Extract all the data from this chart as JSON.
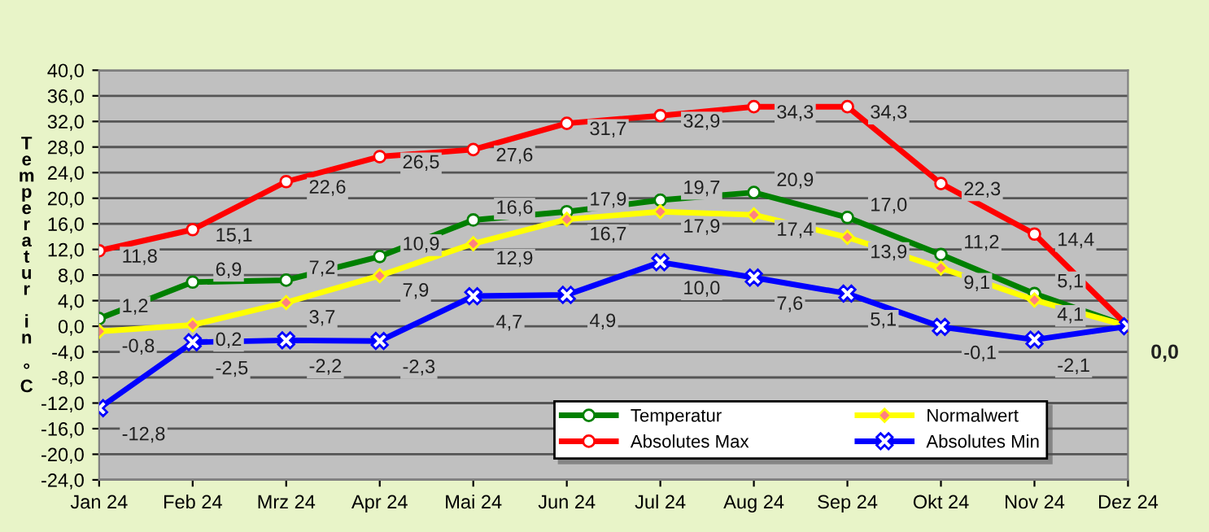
{
  "chart_data": {
    "type": "line",
    "ylabel": "Temperatur in °C",
    "categories": [
      "Jan 24",
      "Feb 24",
      "Mrz 24",
      "Apr 24",
      "Mai 24",
      "Jun 24",
      "Jul 24",
      "Aug 24",
      "Sep 24",
      "Okt 24",
      "Nov 24",
      "Dez 24"
    ],
    "series": [
      {
        "name": "Temperatur",
        "color": "#008000",
        "marker": "circle",
        "values": [
          1.2,
          6.9,
          7.2,
          10.9,
          16.6,
          17.9,
          19.7,
          20.9,
          17.0,
          11.2,
          5.1,
          0.0
        ],
        "value_labels": [
          "1,2",
          "6,9",
          "7,2",
          "10,9",
          "16,6",
          "17,9",
          "19,7",
          "20,9",
          "17,0",
          "11,2",
          "5,1",
          null
        ]
      },
      {
        "name": "Normalwert",
        "color": "#ffff00",
        "marker": "diamond",
        "values": [
          -0.8,
          0.2,
          3.7,
          7.9,
          12.9,
          16.7,
          17.9,
          17.4,
          13.9,
          9.1,
          4.1,
          0.0
        ],
        "value_labels": [
          "-0,8",
          "0,2",
          "3,7",
          "7,9",
          "12,9",
          "16,7",
          "17,9",
          "17,4",
          "13,9",
          "9,1",
          "4,1",
          null
        ]
      },
      {
        "name": "Absolutes Max",
        "color": "#ff0000",
        "marker": "circle",
        "values": [
          11.8,
          15.1,
          22.6,
          26.5,
          27.6,
          31.7,
          32.9,
          34.3,
          34.3,
          22.3,
          14.4,
          0.0
        ],
        "value_labels": [
          "11,8",
          "15,1",
          "22,6",
          "26,5",
          "27,6",
          "31,7",
          "32,9",
          "34,3",
          "34,3",
          "22,3",
          "14,4",
          null
        ]
      },
      {
        "name": "Absolutes Min",
        "color": "#0000ff",
        "marker": "cross",
        "values": [
          -12.8,
          -2.5,
          -2.2,
          -2.3,
          4.7,
          4.9,
          10.0,
          7.6,
          5.1,
          -0.1,
          -2.1,
          0.0
        ],
        "value_labels": [
          "-12,8",
          "-2,5",
          "-2,2",
          "-2,3",
          "4,7",
          "4,9",
          "10,0",
          "7,6",
          "5,1",
          "-0,1",
          "-2,1",
          "0,0"
        ]
      }
    ],
    "ylim": [
      -24,
      40
    ],
    "yticks": [
      {
        "value": -24,
        "label": "-24,0"
      },
      {
        "value": -20,
        "label": "-20,0"
      },
      {
        "value": -16,
        "label": "-16,0"
      },
      {
        "value": -12,
        "label": "-12,0"
      },
      {
        "value": -8,
        "label": "-8,0"
      },
      {
        "value": -4,
        "label": "-4,0"
      },
      {
        "value": 0,
        "label": "0,0"
      },
      {
        "value": 4,
        "label": "4,0"
      },
      {
        "value": 8,
        "label": "8,0"
      },
      {
        "value": 12,
        "label": "12,0"
      },
      {
        "value": 16,
        "label": "16,0"
      },
      {
        "value": 20,
        "label": "20,0"
      },
      {
        "value": 24,
        "label": "24,0"
      },
      {
        "value": 28,
        "label": "28,0"
      },
      {
        "value": 32,
        "label": "32,0"
      },
      {
        "value": 36,
        "label": "36,0"
      },
      {
        "value": 40,
        "label": "40,0"
      }
    ],
    "grid": "y",
    "legend": "bottom right",
    "line_style": "solid"
  }
}
